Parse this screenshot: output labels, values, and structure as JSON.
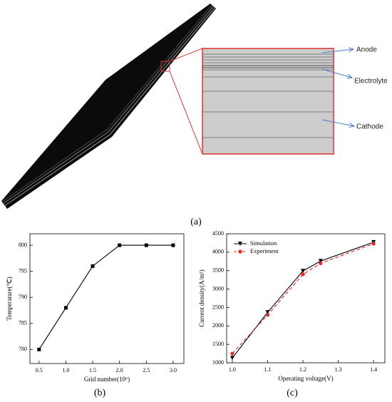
{
  "figure": {
    "labels": [
      "Anode",
      "Electrolyte",
      "Cathode"
    ],
    "caption": "(a)"
  },
  "chart_data": [
    {
      "type": "line",
      "caption": "(b)",
      "xlabel": "Grid number(10⁶)",
      "ylabel": "Temperature(℃)",
      "x": [
        0.5,
        1.0,
        1.5,
        2.0,
        2.5,
        3.0
      ],
      "series": [
        {
          "color": "#000000",
          "marker": "square",
          "dash": "solid",
          "values": [
            780,
            788,
            796,
            800,
            800,
            800
          ]
        }
      ],
      "xlim": [
        0.33,
        3.2
      ],
      "ylim": [
        777.3,
        802.2
      ],
      "xticks": [
        {
          "value": 0.5,
          "label": "0.5"
        },
        {
          "value": 1.0,
          "label": "1.0"
        },
        {
          "value": 1.5,
          "label": "1.5"
        },
        {
          "value": 2.0,
          "label": "2.0"
        },
        {
          "value": 2.5,
          "label": "2.5"
        },
        {
          "value": 3.0,
          "label": "3.0"
        }
      ],
      "yticks": [
        780,
        785,
        790,
        795,
        800
      ]
    },
    {
      "type": "line",
      "caption": "(c)",
      "xlabel": "Operating voltage(V)",
      "ylabel": "Current density(A/m²)",
      "x": [
        1.0,
        1.1,
        1.2,
        1.25,
        1.4
      ],
      "series": [
        {
          "name": "Simulation",
          "color": "#000000",
          "marker": "triangle-down",
          "dash": "solid",
          "values": [
            1130,
            2370,
            3490,
            3760,
            4270
          ]
        },
        {
          "name": "Experiment",
          "color": "#e8262a",
          "marker": "circle",
          "dash": "dashed",
          "values": [
            1250,
            2300,
            3400,
            3700,
            4230
          ]
        }
      ],
      "xlim": [
        0.984,
        1.432
      ],
      "ylim": [
        1000,
        4500
      ],
      "xticks": [
        {
          "value": 1.0,
          "label": "1.0"
        },
        {
          "value": 1.1,
          "label": "1.1"
        },
        {
          "value": 1.2,
          "label": "1.2"
        },
        {
          "value": 1.3,
          "label": "1.3"
        },
        {
          "value": 1.4,
          "label": "1.4"
        }
      ],
      "yticks": [
        1000,
        1500,
        2000,
        2500,
        3000,
        3500,
        4000,
        4500
      ],
      "legend": "upper left"
    }
  ]
}
